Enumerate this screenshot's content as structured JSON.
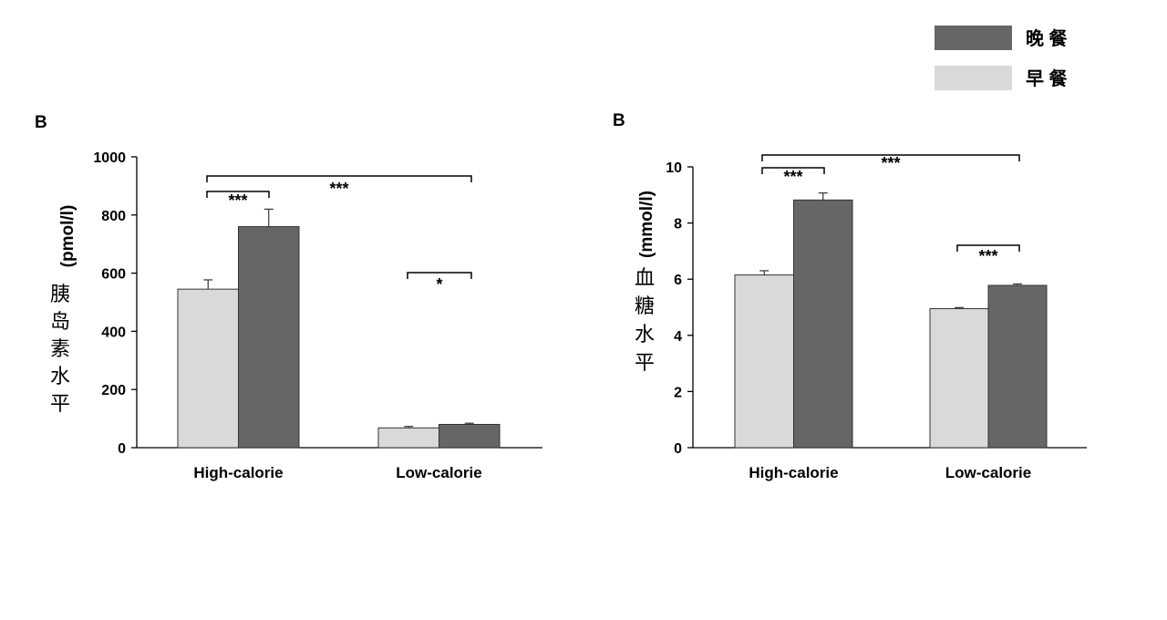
{
  "legend": [
    {
      "label": "晚 餐",
      "color": "#666666"
    },
    {
      "label": "早 餐",
      "color": "#d9d9d9"
    }
  ],
  "colors": {
    "breakfast": "#d9d9d9",
    "dinner": "#666666",
    "axis": "#000000"
  },
  "chart_data": [
    {
      "type": "bar",
      "panel_label": "B",
      "ylabel_chars": [
        "胰",
        "岛",
        "素",
        "水",
        "平"
      ],
      "ylabel_unit": "(pmol/l)",
      "ylim": [
        0,
        1000
      ],
      "yticks": [
        0,
        200,
        400,
        600,
        800,
        1000
      ],
      "categories": [
        "High-calorie",
        "Low-calorie"
      ],
      "series": [
        {
          "name": "早 餐",
          "values": [
            545,
            68
          ],
          "errors": [
            32,
            5
          ]
        },
        {
          "name": "晚 餐",
          "values": [
            760,
            80
          ],
          "errors": [
            60,
            4
          ]
        }
      ],
      "significance": [
        {
          "label": "***",
          "from": "High-calorie:早 餐",
          "to": "High-calorie:晚 餐"
        },
        {
          "label": "***",
          "from": "High-calorie",
          "to": "Low-calorie"
        },
        {
          "label": "*",
          "from": "Low-calorie:早 餐",
          "to": "Low-calorie:晚 餐"
        }
      ]
    },
    {
      "type": "bar",
      "panel_label": "B",
      "ylabel_chars": [
        "血",
        "糖",
        "水",
        "平"
      ],
      "ylabel_unit": "(mmol/l)",
      "ylim": [
        0,
        10
      ],
      "yticks": [
        0,
        2,
        4,
        6,
        8,
        10
      ],
      "categories": [
        "High-calorie",
        "Low-calorie"
      ],
      "series": [
        {
          "name": "早 餐",
          "values": [
            6.15,
            4.95
          ],
          "errors": [
            0.15,
            0.04
          ]
        },
        {
          "name": "晚 餐",
          "values": [
            8.82,
            5.78
          ],
          "errors": [
            0.25,
            0.05
          ]
        }
      ],
      "significance": [
        {
          "label": "***",
          "from": "High-calorie:早 餐",
          "to": "High-calorie:晚 餐"
        },
        {
          "label": "***",
          "from": "High-calorie",
          "to": "Low-calorie"
        },
        {
          "label": "***",
          "from": "Low-calorie:早 餐",
          "to": "Low-calorie:晚 餐"
        }
      ]
    }
  ]
}
